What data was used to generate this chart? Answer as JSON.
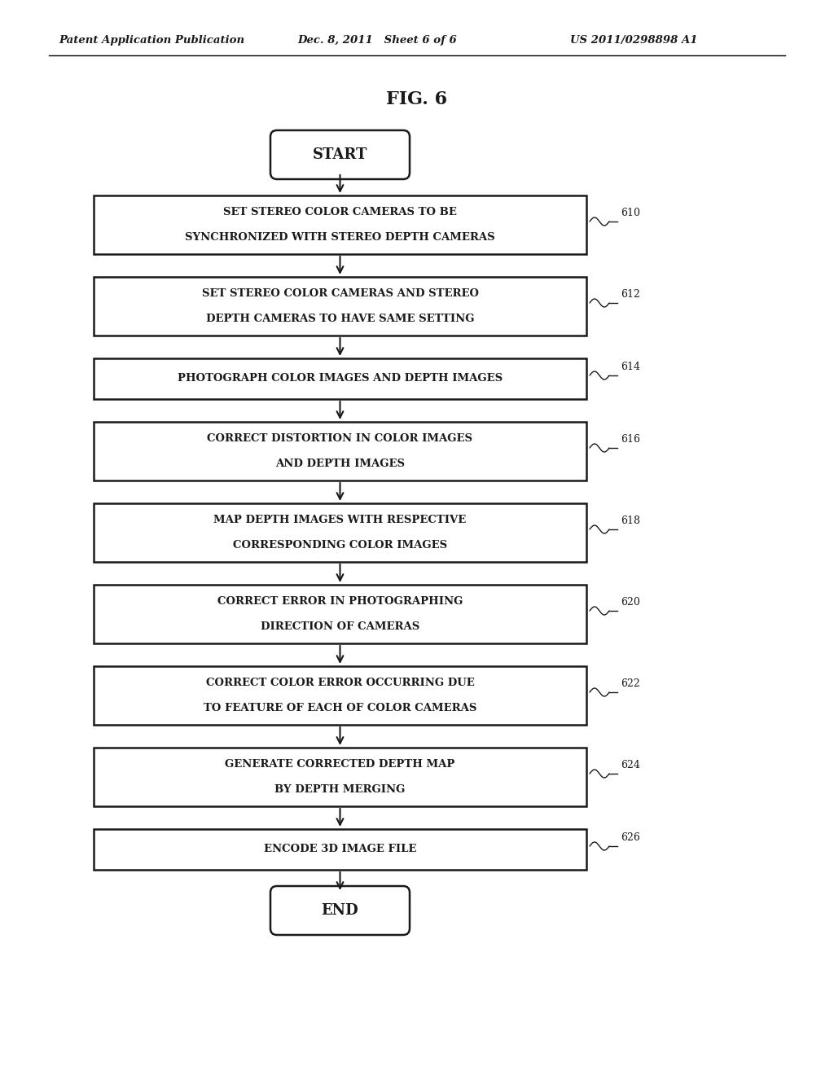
{
  "fig_label": "FIG. 6",
  "header_left": "Patent Application Publication",
  "header_mid": "Dec. 8, 2011   Sheet 6 of 6",
  "header_right": "US 2011/0298898 A1",
  "start_label": "START",
  "end_label": "END",
  "boxes": [
    {
      "id": 610,
      "lines": [
        "SET STEREO COLOR CAMERAS TO BE",
        "SYNCHRONIZED WITH STEREO DEPTH CAMERAS"
      ]
    },
    {
      "id": 612,
      "lines": [
        "SET STEREO COLOR CAMERAS AND STEREO",
        "DEPTH CAMERAS TO HAVE SAME SETTING"
      ]
    },
    {
      "id": 614,
      "lines": [
        "PHOTOGRAPH COLOR IMAGES AND DEPTH IMAGES"
      ]
    },
    {
      "id": 616,
      "lines": [
        "CORRECT DISTORTION IN COLOR IMAGES",
        "AND DEPTH IMAGES"
      ]
    },
    {
      "id": 618,
      "lines": [
        "MAP DEPTH IMAGES WITH RESPECTIVE",
        "CORRESPONDING COLOR IMAGES"
      ]
    },
    {
      "id": 620,
      "lines": [
        "CORRECT ERROR IN PHOTOGRAPHING",
        "DIRECTION OF CAMERAS"
      ]
    },
    {
      "id": 622,
      "lines": [
        "CORRECT COLOR ERROR OCCURRING DUE",
        "TO FEATURE OF EACH OF COLOR CAMERAS"
      ]
    },
    {
      "id": 624,
      "lines": [
        "GENERATE CORRECTED DEPTH MAP",
        "BY DEPTH MERGING"
      ]
    },
    {
      "id": 626,
      "lines": [
        "ENCODE 3D IMAGE FILE"
      ]
    }
  ],
  "bg_color": "#ffffff",
  "box_color": "#ffffff",
  "box_edge_color": "#1a1a1a",
  "text_color": "#1a1a1a",
  "arrow_color": "#1a1a1a",
  "header_line_color": "#000000"
}
